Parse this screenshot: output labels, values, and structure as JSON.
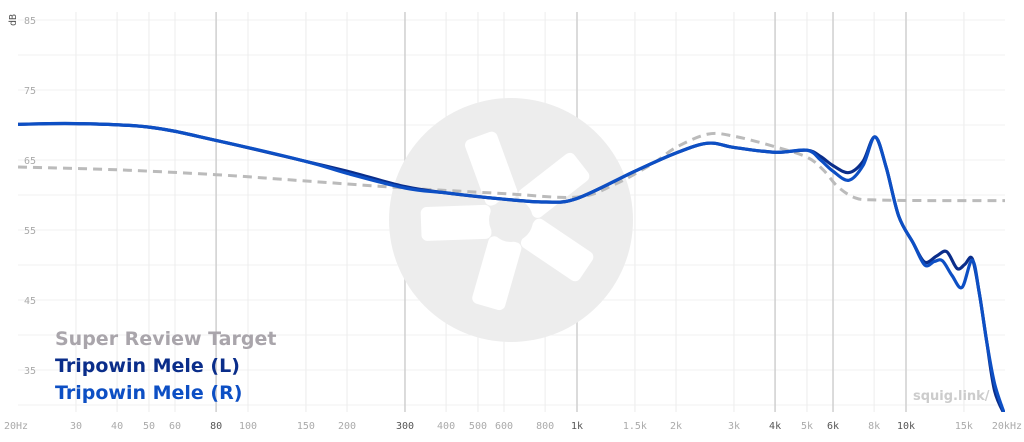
{
  "chart_data": {
    "type": "line",
    "x_scale": "log",
    "xlim": [
      20,
      20000
    ],
    "ylim": [
      29,
      86
    ],
    "ylabel": "dB",
    "grid": true,
    "legend_placement": "bottom-left",
    "x_ticks": [
      {
        "label": "20Hz",
        "value": 20,
        "major": false
      },
      {
        "label": "30",
        "value": 30,
        "major": false
      },
      {
        "label": "40",
        "value": 40,
        "major": false
      },
      {
        "label": "50",
        "value": 50,
        "major": false
      },
      {
        "label": "60",
        "value": 60,
        "major": false
      },
      {
        "label": "80",
        "value": 80,
        "major": true
      },
      {
        "label": "100",
        "value": 100,
        "major": false
      },
      {
        "label": "150",
        "value": 150,
        "major": false
      },
      {
        "label": "200",
        "value": 200,
        "major": false
      },
      {
        "label": "300",
        "value": 300,
        "major": true
      },
      {
        "label": "400",
        "value": 400,
        "major": false
      },
      {
        "label": "500",
        "value": 500,
        "major": false
      },
      {
        "label": "600",
        "value": 600,
        "major": false
      },
      {
        "label": "800",
        "value": 800,
        "major": false
      },
      {
        "label": "1k",
        "value": 1000,
        "major": true
      },
      {
        "label": "1.5k",
        "value": 1500,
        "major": false
      },
      {
        "label": "2k",
        "value": 2000,
        "major": false
      },
      {
        "label": "3k",
        "value": 3000,
        "major": false
      },
      {
        "label": "4k",
        "value": 4000,
        "major": true
      },
      {
        "label": "5k",
        "value": 5000,
        "major": false
      },
      {
        "label": "6k",
        "value": 6000,
        "major": true
      },
      {
        "label": "8k",
        "value": 8000,
        "major": false
      },
      {
        "label": "10k",
        "value": 10000,
        "major": true
      },
      {
        "label": "15k",
        "value": 15000,
        "major": false
      },
      {
        "label": "20kHz",
        "value": 20000,
        "major": false
      }
    ],
    "y_ticks": [
      85,
      75,
      65,
      55,
      45,
      35
    ],
    "series": [
      {
        "name": "Super Review Target",
        "color": "#bbbbbb",
        "dashed": true,
        "points": [
          [
            20,
            64
          ],
          [
            40,
            63.6
          ],
          [
            80,
            62.9
          ],
          [
            150,
            62
          ],
          [
            300,
            61
          ],
          [
            600,
            60.2
          ],
          [
            1000,
            59.7
          ],
          [
            1300,
            61.5
          ],
          [
            1700,
            64.5
          ],
          [
            2000,
            66.8
          ],
          [
            2500,
            68.7
          ],
          [
            3000,
            68.4
          ],
          [
            4000,
            66.9
          ],
          [
            5000,
            65.4
          ],
          [
            5600,
            63.6
          ],
          [
            6200,
            61.2
          ],
          [
            7000,
            59.6
          ],
          [
            8000,
            59.3
          ],
          [
            12000,
            59.2
          ],
          [
            20000,
            59.2
          ]
        ]
      },
      {
        "name": "Tripowin Mele (L)",
        "color": "#0a2d8a",
        "dashed": false,
        "points": [
          [
            20,
            70.1
          ],
          [
            30,
            70.2
          ],
          [
            50,
            69.7
          ],
          [
            80,
            67.8
          ],
          [
            150,
            64.8
          ],
          [
            200,
            63.4
          ],
          [
            300,
            61.2
          ],
          [
            400,
            60.3
          ],
          [
            600,
            59.4
          ],
          [
            800,
            59
          ],
          [
            1000,
            59.5
          ],
          [
            1500,
            63.4
          ],
          [
            2000,
            66
          ],
          [
            2500,
            67.4
          ],
          [
            3000,
            66.8
          ],
          [
            4000,
            66.1
          ],
          [
            5000,
            66.4
          ],
          [
            5500,
            65.5
          ],
          [
            6000,
            64.2
          ],
          [
            6700,
            63.2
          ],
          [
            7400,
            64.8
          ],
          [
            8050,
            68.3
          ],
          [
            8700,
            64
          ],
          [
            9500,
            57
          ],
          [
            10500,
            53.2
          ],
          [
            11400,
            50.4
          ],
          [
            12400,
            51.3
          ],
          [
            13300,
            51.9
          ],
          [
            14300,
            49.5
          ],
          [
            15100,
            50.1
          ],
          [
            15900,
            50.9
          ],
          [
            16700,
            46
          ],
          [
            17600,
            39
          ],
          [
            18600,
            32
          ],
          [
            20000,
            28.5
          ]
        ]
      },
      {
        "name": "Tripowin Mele (R)",
        "color": "#0d4fc4",
        "dashed": false,
        "points": [
          [
            20,
            70.1
          ],
          [
            30,
            70.2
          ],
          [
            50,
            69.7
          ],
          [
            80,
            67.8
          ],
          [
            150,
            64.8
          ],
          [
            200,
            63.1
          ],
          [
            300,
            61
          ],
          [
            400,
            60.3
          ],
          [
            600,
            59.4
          ],
          [
            800,
            59
          ],
          [
            1000,
            59.5
          ],
          [
            1500,
            63.4
          ],
          [
            2000,
            66
          ],
          [
            2500,
            67.4
          ],
          [
            3000,
            66.8
          ],
          [
            4000,
            66.1
          ],
          [
            5000,
            66.4
          ],
          [
            5500,
            65
          ],
          [
            6000,
            63.4
          ],
          [
            6700,
            62.1
          ],
          [
            7400,
            64.2
          ],
          [
            8050,
            68.3
          ],
          [
            8700,
            64
          ],
          [
            9500,
            57
          ],
          [
            10500,
            53.2
          ],
          [
            11400,
            50
          ],
          [
            12200,
            50.5
          ],
          [
            12900,
            50.6
          ],
          [
            13800,
            48.5
          ],
          [
            14800,
            46.8
          ],
          [
            15900,
            50.7
          ],
          [
            16700,
            46
          ],
          [
            17600,
            39
          ],
          [
            18600,
            33
          ],
          [
            20000,
            28.5
          ]
        ]
      }
    ]
  },
  "legend": [
    "Super Review Target",
    "Tripowin Mele (L)",
    "Tripowin Mele (R)"
  ],
  "watermark": "squig.link/"
}
